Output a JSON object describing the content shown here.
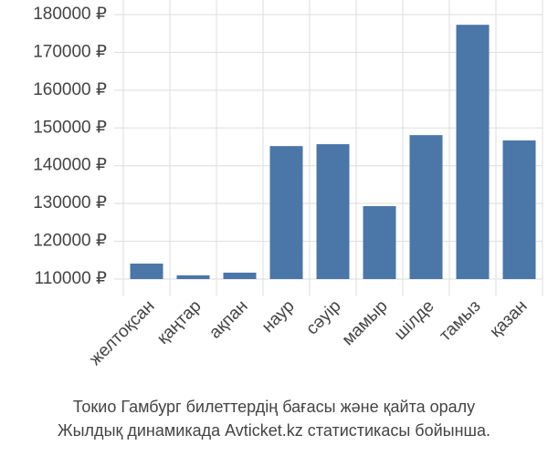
{
  "chart_data": {
    "type": "bar",
    "title": [
      "Токио Гамбург билеттердің бағасы және қайта оралу",
      "Жылдық динамикада Avticket.kz статистикасы бойынша."
    ],
    "categories": [
      "желтоқсан",
      "қаңтар",
      "ақпан",
      "наур",
      "сәуір",
      "мамыр",
      "шілде",
      "тамыз",
      "қазан"
    ],
    "values": [
      114100,
      111000,
      111700,
      145200,
      145700,
      129300,
      148100,
      177300,
      146700
    ],
    "color": "#4a76a8",
    "ylim": [
      110000,
      180000
    ],
    "yticks": [
      {
        "value": 110000,
        "label": "110000 ₽"
      },
      {
        "value": 120000,
        "label": "120000 ₽"
      },
      {
        "value": 130000,
        "label": "130000 ₽"
      },
      {
        "value": 140000,
        "label": "140000 ₽"
      },
      {
        "value": 150000,
        "label": "150000 ₽"
      },
      {
        "value": 160000,
        "label": "160000 ₽"
      },
      {
        "value": 170000,
        "label": "170000 ₽"
      },
      {
        "value": 180000,
        "label": "180000 ₽"
      }
    ],
    "grid": true
  }
}
